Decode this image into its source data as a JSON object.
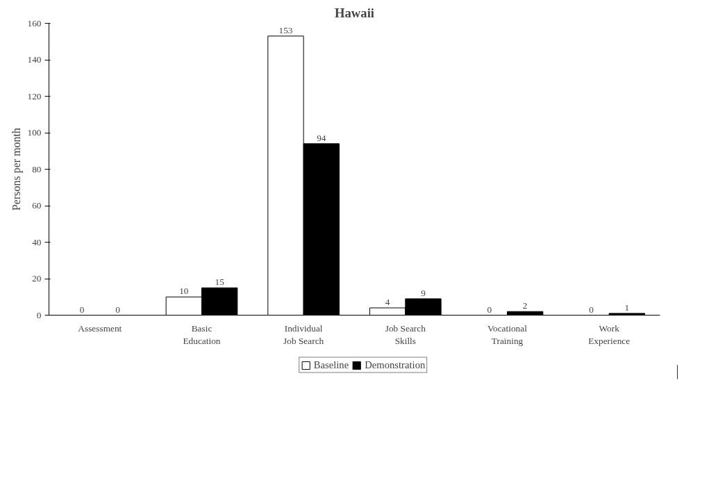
{
  "chart_data": {
    "type": "bar",
    "title": "Hawaii",
    "ylabel": "Persons per month",
    "categories": [
      "Assessment",
      "Basic\nEducation",
      "Individual\nJob Search",
      "Job Search\nSkills",
      "Vocational\nTraining",
      "Work\nExperience"
    ],
    "series": [
      {
        "name": "Baseline",
        "color": "#ffffff",
        "values": [
          0,
          10,
          153,
          4,
          0,
          0
        ]
      },
      {
        "name": "Demonstration",
        "color": "#000000",
        "values": [
          0,
          15,
          94,
          9,
          2,
          1
        ]
      }
    ],
    "ylim": [
      0,
      160
    ],
    "yticks": [
      0,
      20,
      40,
      60,
      80,
      100,
      120,
      140,
      160
    ],
    "grid": false,
    "legend": "bottom",
    "data_labels": true
  }
}
